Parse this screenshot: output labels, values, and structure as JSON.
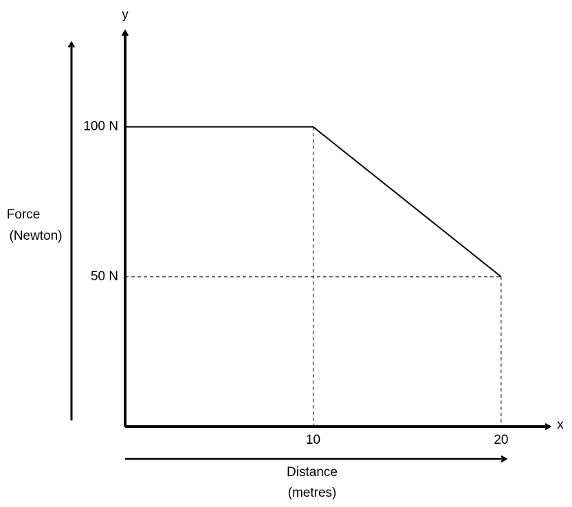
{
  "chart_data": {
    "type": "line",
    "x": [
      0,
      10,
      20
    ],
    "series": [
      {
        "color": "#000000",
        "values": [
          100,
          100,
          50
        ]
      }
    ],
    "xlim": [
      0,
      22.6
    ],
    "ylim": [
      0,
      132
    ],
    "xticks": [
      10,
      20
    ],
    "yticks": [
      {
        "value": 50,
        "label": "50 N"
      },
      {
        "value": 100,
        "label": "100 N"
      }
    ],
    "x_axis_letter": "x",
    "y_axis_letter": "y",
    "x_label": [
      "Distance",
      "(metres)"
    ],
    "y_label": [
      "Force",
      "(Newton)"
    ],
    "drop_lines": true
  }
}
